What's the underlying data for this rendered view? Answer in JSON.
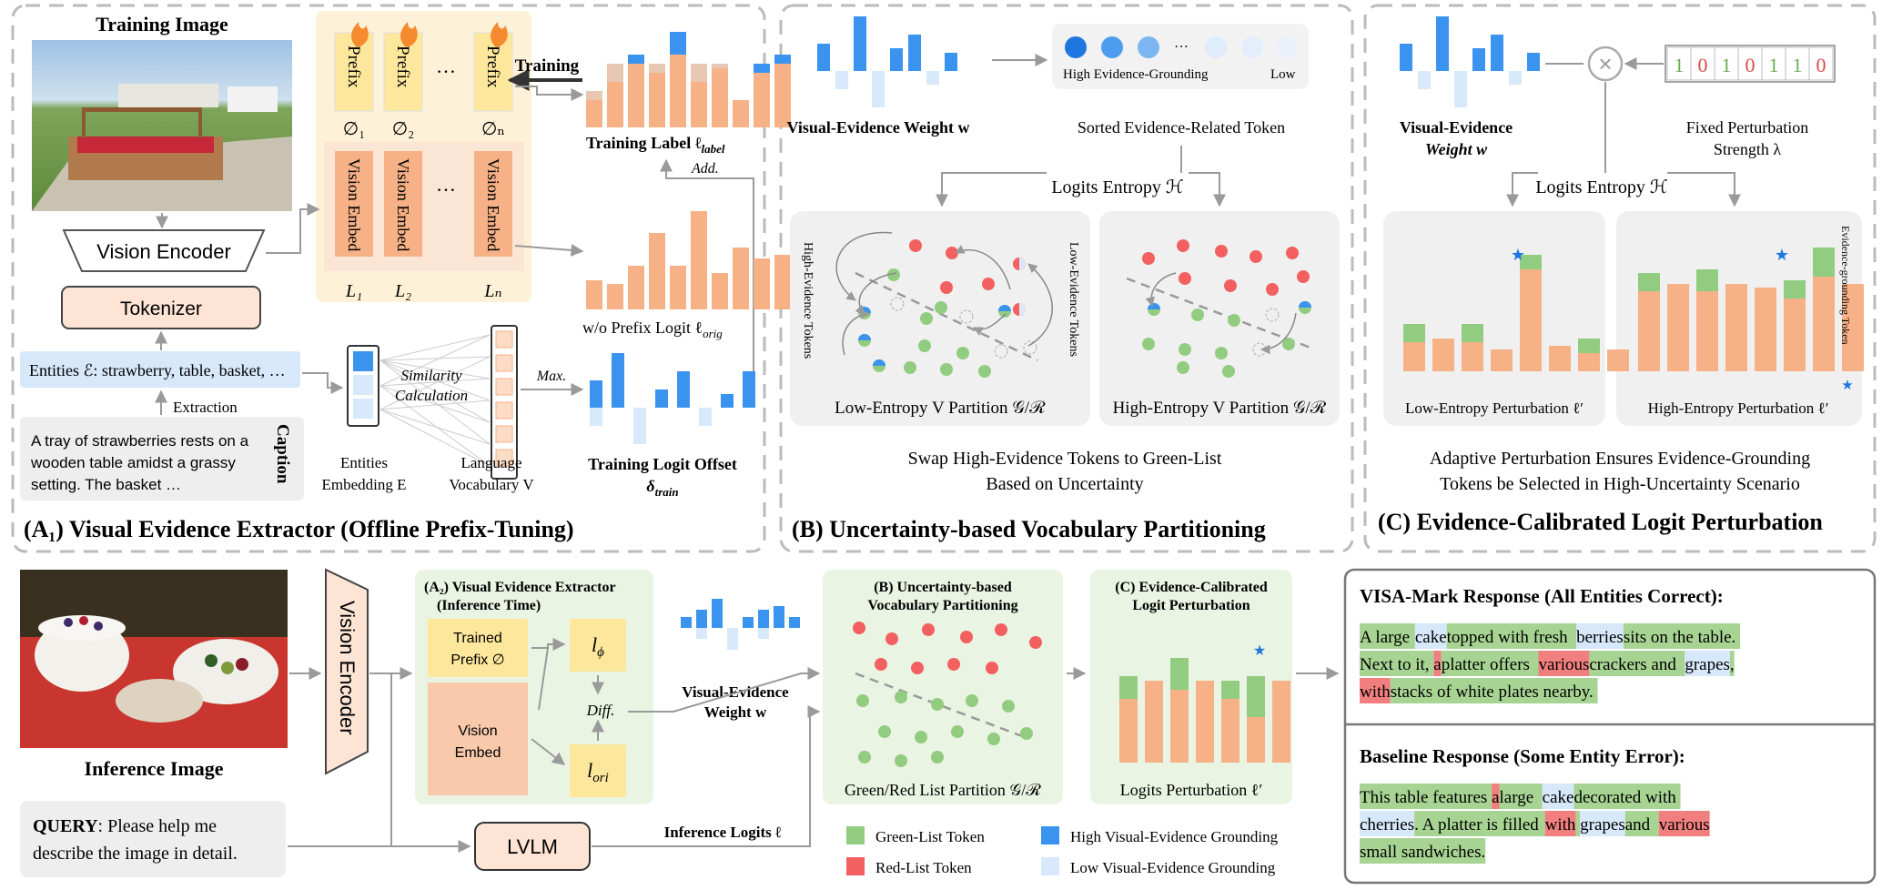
{
  "panel_a1": {
    "training_image_title": "Training Image",
    "prefix_label": "Prefix",
    "phi_labels": [
      "∅₁",
      "∅₂",
      "∅ₙ"
    ],
    "vision_embed_label": "Vision Embed",
    "l_labels": [
      "L₁",
      "L₂",
      "Lₙ"
    ],
    "ellipsis": "…",
    "training_arrow_label": "Training",
    "training_label_caption": "Training Label ℓ",
    "training_label_sub": "label",
    "add_label": "Add.",
    "wo_prefix_caption": "w/o Prefix Logit ℓ",
    "wo_prefix_sub": "orig",
    "vision_encoder": "Vision Encoder",
    "tokenizer": "Tokenizer",
    "entities_text": "Entities ℰ: strawberry, table, basket, …",
    "extraction_label": "Extraction",
    "caption_lines": [
      "A tray of strawberries rests on a",
      "wooden table amidst a grassy",
      "setting. The basket …"
    ],
    "caption_side": "Caption",
    "similarity_lines": [
      "Similarity",
      "Calculation"
    ],
    "max_label": "Max.",
    "entities_embedding": [
      "Entities",
      "Embedding E"
    ],
    "language_vocabulary": [
      "Language",
      "Vocabulary V"
    ],
    "training_logit_offset": "Training Logit Offset",
    "delta_train": "δ",
    "delta_sub": "train",
    "title": "(A₁) Visual Evidence Extractor (Offline Prefix-Tuning)"
  },
  "panel_b": {
    "visual_evidence_weight": "Visual-Evidence Weight w",
    "high_grounding": "High Evidence-Grounding",
    "low_label": "Low",
    "ellipsis": "…",
    "sorted_tokens": "Sorted Evidence-Related Token",
    "logits_entropy": "Logits Entropy ℋ",
    "high_evidence_tokens": "High-Evidence Tokens",
    "low_evidence_tokens": "Low-Evidence Tokens",
    "low_entropy_partition": "Low-Entropy V Partition 𝒢/ℛ",
    "high_entropy_partition": "High-Entropy V Partition 𝒢/ℛ",
    "caption_lines": [
      "Swap High-Evidence Tokens to Green-List",
      "Based on Uncertainty"
    ],
    "title": "(B) Uncertainty-based Vocabulary Partitioning"
  },
  "panel_c": {
    "visual_evidence_weight": [
      "Visual-Evidence",
      "Weight w"
    ],
    "binary_mask": [
      "1",
      "0",
      "1",
      "0",
      "1",
      "1",
      "0"
    ],
    "times_symbol": "×",
    "fixed_perturbation": [
      "Fixed Perturbation",
      "Strength λ"
    ],
    "logits_entropy": "Logits Entropy ℋ",
    "low_entropy_perturbation": "Low-Entropy Perturbation ℓ′",
    "high_entropy_perturbation": "High-Entropy Perturbation ℓ′",
    "evidence_grounding_token": "Evidence-grounding Token",
    "star": "★",
    "caption_lines": [
      "Adaptive Perturbation Ensures Evidence-Grounding",
      "Tokens be Selected in High-Uncertainty Scenario"
    ],
    "title": "(C) Evidence-Calibrated Logit Perturbation"
  },
  "bottom": {
    "inference_image": "Inference Image",
    "vision_encoder": "Vision Encoder",
    "a2_title": [
      "(A₂) Visual Evidence Extractor",
      "(Inference Time)"
    ],
    "trained_prefix": [
      "Trained",
      "Prefix ∅"
    ],
    "vision_embed": [
      "Vision",
      "Embed"
    ],
    "l_phi": "l",
    "l_phi_sub": "ϕ",
    "l_ori": "l",
    "l_ori_sub": "ori",
    "diff": "Diff.",
    "visual_evidence_weight": [
      "Visual-Evidence",
      "Weight w"
    ],
    "query_label": "QUERY",
    "query_text": [
      ": Please help me",
      "describe the image in detail."
    ],
    "lvlm": "LVLM",
    "inference_logits": "Inference Logits ℓ",
    "b_title": [
      "(B) Uncertainty-based",
      "Vocabulary Partitioning"
    ],
    "green_red_partition": "Green/Red List Partition 𝒢/ℛ",
    "c_title": [
      "(C) Evidence-Calibrated",
      "Logit Perturbation"
    ],
    "logits_perturbation": "Logits Perturbation ℓ′",
    "legend": {
      "green": "Green-List Token",
      "red": "Red-List Token",
      "high": "High Visual-Evidence Grounding",
      "low": "Low Visual-Evidence Grounding"
    }
  },
  "responses": {
    "visa_title": "VISA-Mark Response (All Entities Correct):",
    "visa_lines": [
      [
        "A large ",
        "cake",
        " topped with fresh ",
        "berries",
        " sits on the table."
      ],
      [
        "Next to it, ",
        "a",
        " platter offers ",
        "various",
        " crackers and ",
        "grapes",
        ","
      ],
      [
        "with",
        " stacks of white plates nearby."
      ]
    ],
    "baseline_title": "Baseline Response (Some Entity Error):",
    "baseline_lines": [
      [
        "This table features ",
        "a",
        " large ",
        "cake",
        " decorated with"
      ],
      [
        "cherries",
        ". A platter is filled ",
        "with",
        " ",
        "grapes",
        " and ",
        "various"
      ],
      [
        "small sandwiches",
        "."
      ]
    ]
  },
  "colors": {
    "blue": "#3b93f0",
    "light_blue": "#d7e9fb",
    "orange": "#f6b187",
    "green": "#92cc80",
    "red": "#f26060",
    "prefix_yellow": "#fde79c",
    "panel_gray": "#f0f0f0",
    "pale_green": "#eaf4e3",
    "salmon": "#fbdcc7",
    "entity_blue": "#d6e8fa"
  }
}
